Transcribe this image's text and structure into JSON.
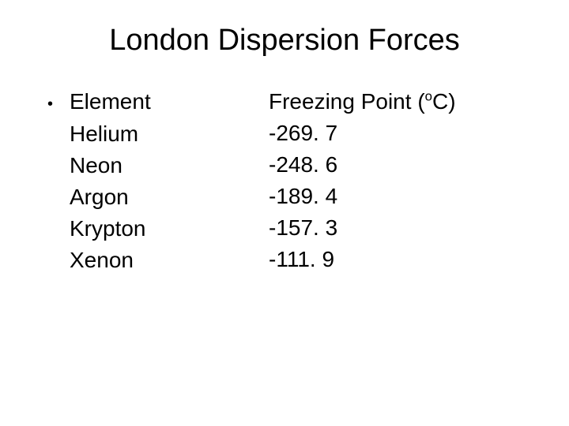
{
  "title": "London Dispersion Forces",
  "columns": {
    "left_header": "Element",
    "right_header_prefix": "Freezing Point (",
    "right_header_sup": "o",
    "right_header_suffix": "C)"
  },
  "rows": [
    {
      "element": "Helium",
      "fp": "-269. 7"
    },
    {
      "element": "Neon",
      "fp": "-248. 6"
    },
    {
      "element": "Argon",
      "fp": "-189. 4"
    },
    {
      "element": "Krypton",
      "fp": "-157. 3"
    },
    {
      "element": "Xenon",
      "fp": "-111. 9"
    }
  ],
  "style": {
    "background_color": "#ffffff",
    "text_color": "#000000",
    "title_fontsize": 38,
    "body_fontsize": 28,
    "font_family": "Arial"
  }
}
